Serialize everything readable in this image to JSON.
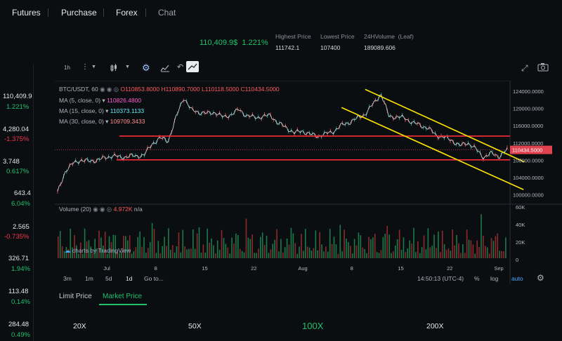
{
  "nav": {
    "items": [
      "Futures",
      "Purchase",
      "Forex",
      "Chat"
    ]
  },
  "ticker": {
    "price": "110,409.9$",
    "change": "1.221%",
    "stats": [
      {
        "label": "Highest Price",
        "value": "111742.1"
      },
      {
        "label": "Lowest Price",
        "value": "107400"
      },
      {
        "label": "24HVolume  (Leaf)",
        "value": "189089.606"
      }
    ]
  },
  "sidebar": {
    "items": [
      {
        "value": "110,409.9",
        "change": "1.221%",
        "dir": "up"
      },
      {
        "value": "4,280.04",
        "change": "-1.375%",
        "dir": "down"
      },
      {
        "value": "3.748",
        "change": "0.617%",
        "dir": "up"
      },
      {
        "value": "643.4",
        "change": "6.04%",
        "dir": "up"
      },
      {
        "value": "2.565",
        "change": "-0.735%",
        "dir": "down"
      },
      {
        "value": "326.71",
        "change": "1.94%",
        "dir": "up"
      },
      {
        "value": "113.48",
        "change": "0.14%",
        "dir": "up"
      },
      {
        "value": "284.48",
        "change": "0.49%",
        "dir": "up"
      }
    ]
  },
  "toolbar": {
    "interval": "1h"
  },
  "chart_legend": {
    "symbol": "BTC/USDT, 60",
    "ohlc": {
      "o": "O110853.8000",
      "h": "H110890.7000",
      "l": "L110118.5000",
      "c": "C110434.5000"
    },
    "ma": [
      {
        "label": "MA (5, close, 0)",
        "value": "110826.4800"
      },
      {
        "label": "MA (15, close, 0)",
        "value": "110373.1133"
      },
      {
        "label": "MA (30, close, 0)",
        "value": "109709.3433"
      }
    ],
    "volume_label": "Volume (20)",
    "volume_value": "4.972K",
    "volume_na": "n/a",
    "watermark": "charts by TradingView"
  },
  "chart_data": {
    "type": "line",
    "title": "BTC/USDT, 60",
    "x_ticks": [
      "Jul",
      "8",
      "15",
      "22",
      "Aug",
      "8",
      "15",
      "22",
      "Sep"
    ],
    "y_ticks": [
      "124000.0000",
      "120000.0000",
      "116000.0000",
      "112000.0000",
      "108000.0000",
      "104000.0000",
      "100000.0000"
    ],
    "ylim": [
      98000,
      125600
    ],
    "last_price_label": "110434.5000",
    "volume_ticks": [
      "60K",
      "40K",
      "20K",
      "0"
    ],
    "series": [
      {
        "name": "close",
        "values": [
          100500,
          105600,
          107300,
          108100,
          107700,
          108100,
          108500,
          109100,
          108600,
          109000,
          108900,
          109300,
          111800,
          113200,
          112400,
          117800,
          122600,
          119500,
          119100,
          118800,
          119100,
          117900,
          118600,
          119700,
          118300,
          117900,
          118100,
          118400,
          116500,
          115600,
          114300,
          114800,
          114000,
          113600,
          114100,
          114700,
          116100,
          116800,
          117700,
          118700,
          121000,
          123400,
          118200,
          118000,
          117800,
          116700,
          116100,
          115400,
          113800,
          113300,
          112600,
          111300,
          112100,
          110600,
          108700,
          109600,
          108900,
          110400
        ]
      }
    ],
    "horizontal_levels": [
      113600,
      108100
    ],
    "channel_upper": [
      [
        39,
        124400
      ],
      [
        59,
        107600
      ]
    ],
    "channel_lower": [
      [
        36,
        120200
      ],
      [
        58,
        101200
      ]
    ]
  },
  "bottom_toolbar": {
    "ranges": [
      "3m",
      "1m",
      "5d",
      "1d",
      "Go to..."
    ],
    "time": "14:50:13 (UTC-4)",
    "percent": "%",
    "log": "log",
    "auto": "auto"
  },
  "order_tabs": {
    "limit": "Limit Price",
    "market": "Market Price"
  },
  "leverage": [
    "20X",
    "50X",
    "100X",
    "200X"
  ]
}
